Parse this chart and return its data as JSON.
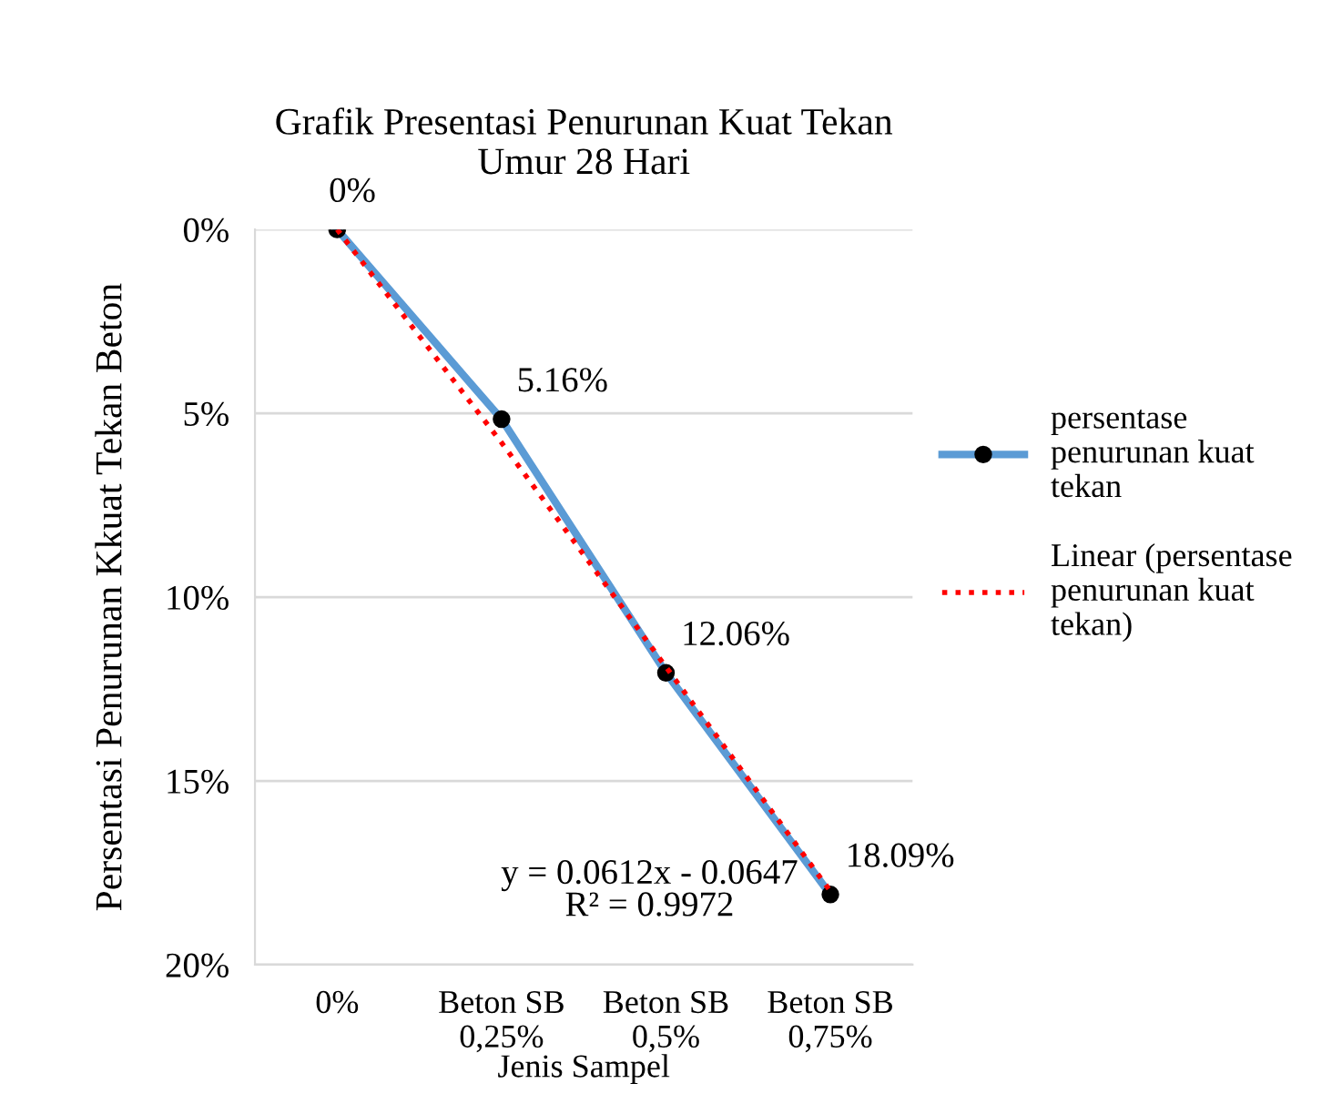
{
  "chart_data": {
    "type": "line",
    "title": "Grafik Presentasi Penurunan Kuat Tekan\nUmur 28 Hari",
    "xlabel": "Jenis Sampel",
    "ylabel": "Persentasi Penurunan Kkuat Tekan Beton",
    "categories": [
      "0%",
      "Beton SB\n0,25%",
      "Beton SB\n0,5%",
      "Beton SB\n0,75%"
    ],
    "series": [
      {
        "name": "persentase penurunan kuat tekan",
        "color": "#5b9bd5",
        "values": [
          0,
          5.16,
          12.06,
          18.09
        ],
        "value_labels": [
          "0%",
          "5.16%",
          "12.06%",
          "18.09%"
        ],
        "marker": "circle",
        "line_style": "solid"
      },
      {
        "name": "Linear (persentase penurunan kuat tekan)",
        "color": "#ff0000",
        "values": [
          0,
          5.8,
          11.9,
          18.0
        ],
        "marker": "none",
        "line_style": "dotted"
      }
    ],
    "ylim": [
      20,
      0
    ],
    "yticks": [
      {
        "value": 0,
        "label": "0%"
      },
      {
        "value": 5,
        "label": "5%"
      },
      {
        "value": 10,
        "label": "10%"
      },
      {
        "value": 15,
        "label": "15%"
      },
      {
        "value": 20,
        "label": "20%"
      }
    ],
    "grid": "y",
    "legend": "right",
    "annotations": [
      "y = 0.0612x - 0.0647\nR² = 0.9972"
    ]
  }
}
